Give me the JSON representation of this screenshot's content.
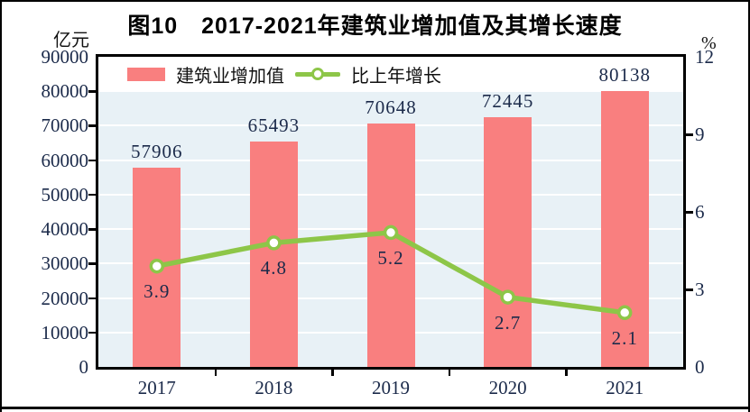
{
  "title": "图10　2017-2021年建筑业增加值及其增长速度",
  "colors": {
    "bar": "#F97F7F",
    "line": "#8DC648",
    "plot_background": "#E8F1F6",
    "gridline": "#FFFFFF",
    "value_label": "#1B2A4A",
    "axis": "#000000"
  },
  "chart_data": {
    "type": "bar+line combo",
    "title": "图10　2017-2021年建筑业增加值及其增长速度",
    "categories": [
      "2017",
      "2018",
      "2019",
      "2020",
      "2021"
    ],
    "series": [
      {
        "name": "建筑业增加值",
        "type": "bar",
        "axis": "left",
        "unit": "亿元",
        "color": "#F97F7F",
        "values": [
          57906,
          65493,
          70648,
          72445,
          80138
        ],
        "labels": [
          "57906",
          "65493",
          "70648",
          "72445",
          "80138"
        ]
      },
      {
        "name": "比上年增长",
        "type": "line",
        "axis": "right",
        "unit": "%",
        "color": "#8DC648",
        "marker": "hollow-circle",
        "values": [
          3.9,
          4.8,
          5.2,
          2.7,
          2.1
        ],
        "labels": [
          "3.9",
          "4.8",
          "5.2",
          "2.7",
          "2.1"
        ]
      }
    ],
    "left_axis": {
      "unit": "亿元",
      "min": 0,
      "max": 90000,
      "step": 10000,
      "tick_labels": [
        "90000",
        "80000",
        "70000",
        "60000",
        "50000",
        "40000",
        "30000",
        "20000",
        "10000",
        "0"
      ]
    },
    "right_axis": {
      "unit": "%",
      "min": 0,
      "max": 12,
      "step": 3,
      "tick_labels": [
        "12",
        "9",
        "6",
        "3",
        "0"
      ]
    },
    "grid": true,
    "legend_position": "top-inside"
  }
}
